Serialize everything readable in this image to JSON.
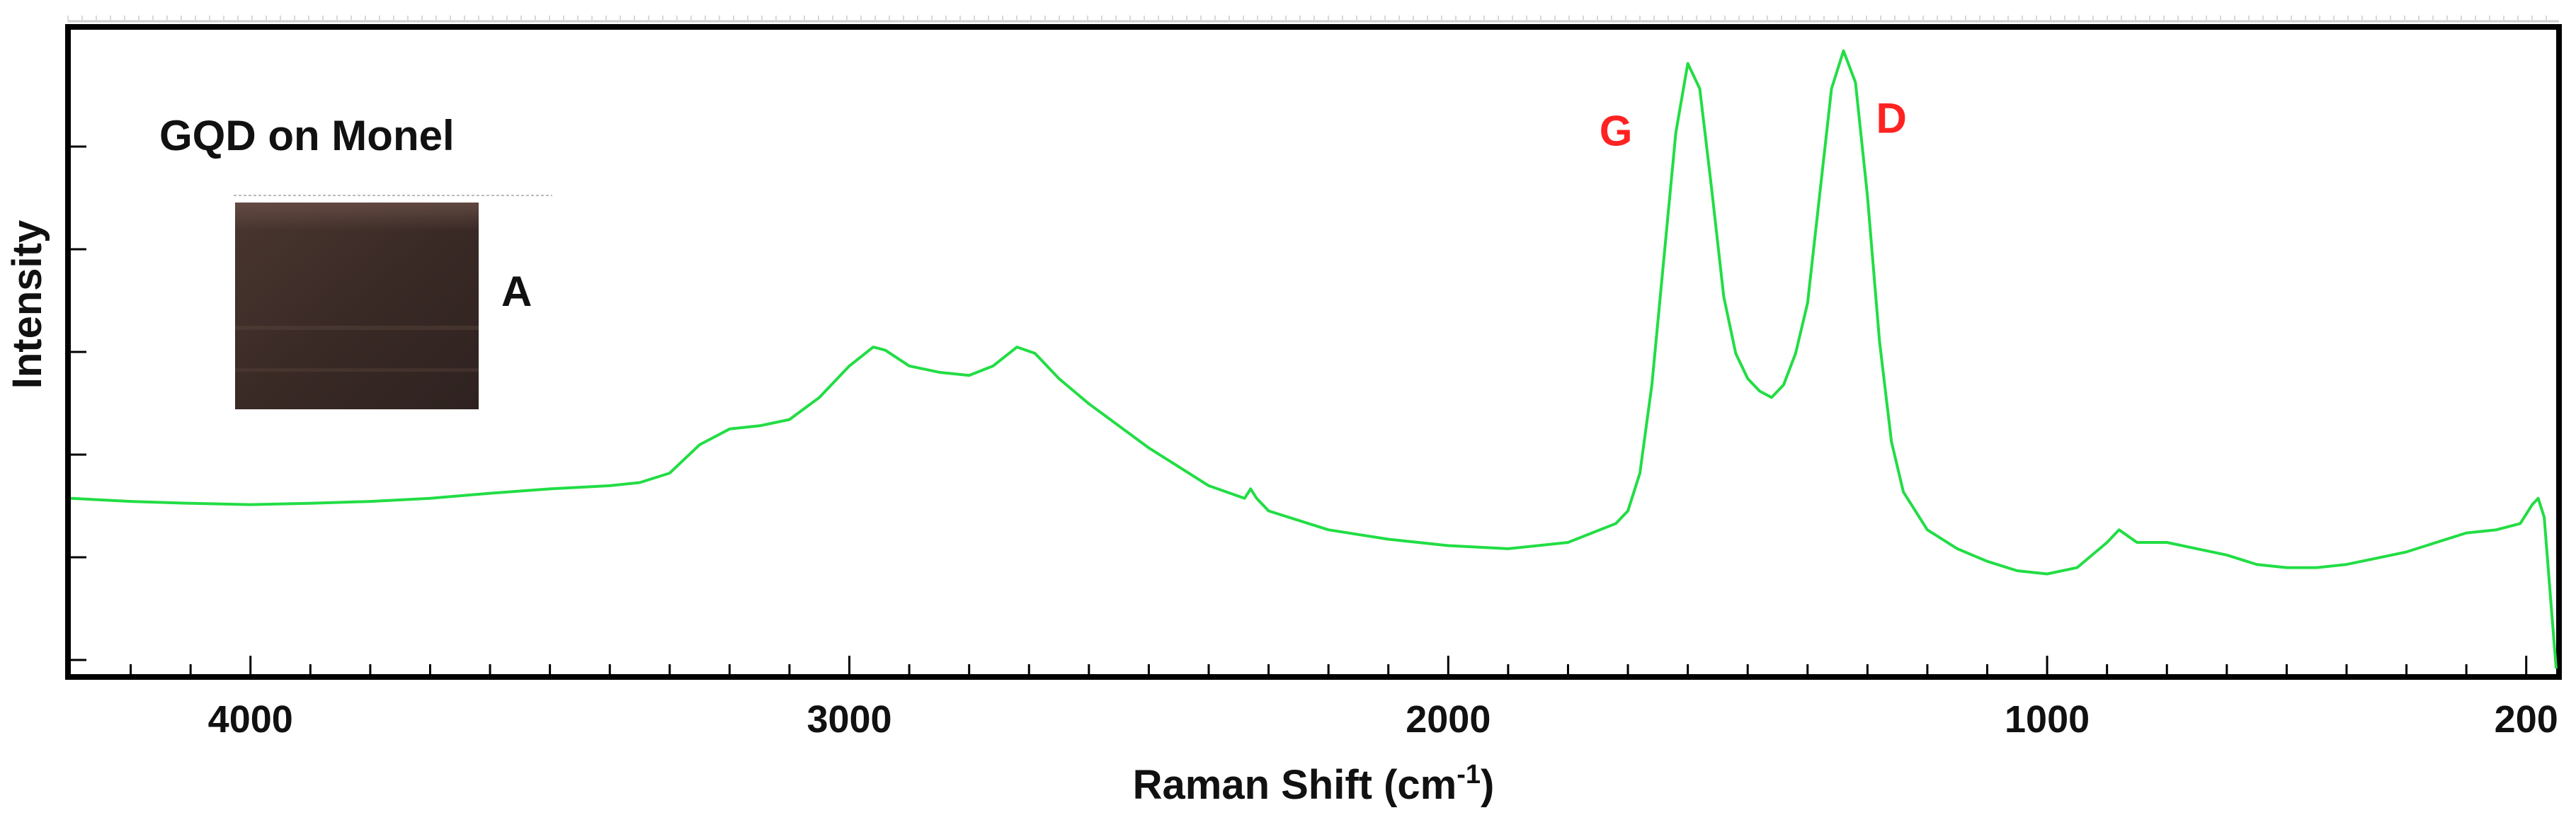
{
  "chart_data": {
    "type": "line",
    "title": "",
    "xlabel": "Raman Shift (cm",
    "xlabel_sup": "-1",
    "xlabel_tail": ")",
    "ylabel": "Intensity",
    "xlim": [
      4300,
      150
    ],
    "x_reversed": true,
    "ylim": [
      0,
      1
    ],
    "y_ticks_labeled": false,
    "x_tick_labels": [
      "4000",
      "3000",
      "2000",
      "1000",
      "200"
    ],
    "x_ticks": [
      4000,
      3000,
      2000,
      1000,
      200
    ],
    "grid": false,
    "series": [
      {
        "color": "#22dd44",
        "x": [
          4300,
          4200,
          4100,
          4000,
          3900,
          3800,
          3700,
          3600,
          3500,
          3400,
          3350,
          3300,
          3250,
          3200,
          3150,
          3100,
          3050,
          3000,
          2960,
          2940,
          2900,
          2850,
          2800,
          2760,
          2720,
          2690,
          2650,
          2600,
          2500,
          2400,
          2340,
          2330,
          2320,
          2300,
          2200,
          2100,
          2000,
          1900,
          1800,
          1760,
          1720,
          1700,
          1680,
          1660,
          1640,
          1620,
          1600,
          1580,
          1560,
          1540,
          1520,
          1500,
          1480,
          1460,
          1440,
          1420,
          1400,
          1380,
          1360,
          1340,
          1320,
          1300,
          1280,
          1260,
          1240,
          1200,
          1150,
          1100,
          1050,
          1000,
          950,
          900,
          880,
          850,
          800,
          750,
          700,
          650,
          600,
          550,
          500,
          450,
          400,
          350,
          300,
          250,
          210,
          190,
          180,
          170,
          160,
          150
        ],
        "y": [
          0.27,
          0.265,
          0.262,
          0.26,
          0.262,
          0.265,
          0.27,
          0.278,
          0.285,
          0.29,
          0.295,
          0.31,
          0.355,
          0.38,
          0.385,
          0.395,
          0.43,
          0.48,
          0.51,
          0.505,
          0.48,
          0.47,
          0.465,
          0.48,
          0.51,
          0.5,
          0.46,
          0.42,
          0.35,
          0.29,
          0.27,
          0.285,
          0.27,
          0.25,
          0.22,
          0.205,
          0.195,
          0.19,
          0.2,
          0.215,
          0.23,
          0.25,
          0.31,
          0.45,
          0.65,
          0.85,
          0.96,
          0.92,
          0.76,
          0.59,
          0.5,
          0.46,
          0.44,
          0.43,
          0.45,
          0.5,
          0.58,
          0.75,
          0.92,
          0.98,
          0.93,
          0.75,
          0.52,
          0.36,
          0.28,
          0.22,
          0.19,
          0.17,
          0.155,
          0.15,
          0.16,
          0.2,
          0.22,
          0.2,
          0.2,
          0.19,
          0.18,
          0.165,
          0.16,
          0.16,
          0.165,
          0.175,
          0.185,
          0.2,
          0.215,
          0.22,
          0.23,
          0.26,
          0.27,
          0.24,
          0.12,
          0.0
        ]
      }
    ],
    "annotations": [
      {
        "text": "G",
        "x": 1720,
        "y": 0.83,
        "color": "#ff2222"
      },
      {
        "text": "D",
        "x": 1260,
        "y": 0.85,
        "color": "#ff2222"
      },
      {
        "text": "GQD on Monel",
        "color": "#111111"
      },
      {
        "text": "A",
        "color": "#111111"
      }
    ],
    "inset_photo": {
      "label": "A",
      "colors": [
        "#3a2a26",
        "#4a3630",
        "#2e2220"
      ]
    }
  }
}
